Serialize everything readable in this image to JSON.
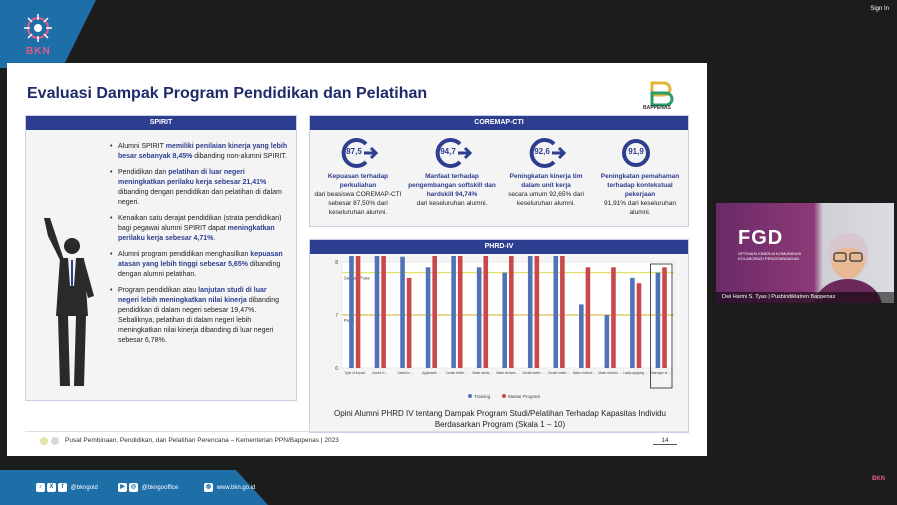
{
  "meeting": {
    "signin_label": "Sign In"
  },
  "brand": {
    "logo_text": "BKN",
    "accent": "#e35a8d",
    "band_color": "#1e6fa8"
  },
  "slide": {
    "title": "Evaluasi Dampak Program Pendidikan dan Pelatihan",
    "org_logo_text": "BAPPENAS",
    "spirit": {
      "header": "SPIRIT",
      "bullets": [
        {
          "pre": "Alumni SPIRIT ",
          "hl": "memiliki penilaian kinerja yang lebih besar sebanyak 8,45%",
          "post": " dibanding non-alumni SPIRIT."
        },
        {
          "pre": "Pendidikan dan ",
          "hl": "pelatihan di luar negeri meningkatkan perilaku kerja sebesar 21,41%",
          "post": " dibanding dengan pendidikan dan pelatihan di dalam negeri."
        },
        {
          "pre": "Kenaikan satu derajat pendidikan (strata pendidikan) bagi pegawai alumni SPIRIT dapat ",
          "hl": "meningkatkan perilaku kerja sebesar 4,71%",
          "post": "."
        },
        {
          "pre": "Alumni program pendidikan menghasilkan ",
          "hl": "kepuasan atasan yang lebih tinggi sebesar 5,65%",
          "post": " dibanding dengan alumni pelatihan."
        },
        {
          "pre": "Program pendidikan atau ",
          "hl": "lanjutan studi di luar negeri lebih meningkatkan nilai kinerja",
          "post": " dibanding pendidikan di dalam negeri sebesar 19,47%. Sebaliknya, pelatihan di dalam negeri lebih meningkatkan nilai kinerja dibanding di luar negeri sebesar 6,78%."
        }
      ]
    },
    "coremap": {
      "header": "COREMAP-CTI",
      "items": [
        {
          "value": "87,5",
          "title": "Kepuasan terhadap perkuliahan",
          "desc": "dari beasiswa COREMAP-CTI sebesar 87,50% dari keseluruhan alumni."
        },
        {
          "value": "94,7",
          "title": "Manfaat terhadap pengembangan softskill dan hardskill 94,74%",
          "desc": "dari keseluruhan alumni."
        },
        {
          "value": "92,6",
          "title": "Peningkatan kinerja tim dalam unit kerja",
          "desc": "secara umum 92,65% dari keseluruhan alumni."
        },
        {
          "value": "91,9",
          "title": "Peningkatan pemahaman terhadap kontekstual pekerjaan",
          "desc": "91,91% dari keseluruhan alumni."
        }
      ]
    },
    "phrd": {
      "header": "PHRD-IV",
      "caption_line1": "Opini Alumni PHRD IV tentang Dampak Program Studi/Pelatihan Terhadap Kapasitas Individu",
      "caption_line2": "Berdasarkan Program (Skala 1 – 10)"
    },
    "footer": {
      "text": "Pusat Pembinaan, Pendidikan, dan Pelatihan Perencana – Kementerian PPN/Bappenas   |   2023",
      "page": "14"
    }
  },
  "chart_data": {
    "type": "bar",
    "ylim": [
      6,
      8
    ],
    "y_ticks": [
      "8",
      "7",
      "6"
    ],
    "reference_lines": [
      {
        "label": "Sangat Puas",
        "value": 7.8,
        "color": "#e3e36a"
      },
      {
        "label": "Puas",
        "value": 7.0,
        "color": "#e3c86a"
      }
    ],
    "series": [
      {
        "name": "Training",
        "color": "#4f72b8",
        "values": [
          8.4,
          8.3,
          8.1,
          7.9,
          8.3,
          7.9,
          7.8,
          8.4,
          8.2,
          7.2,
          7.0,
          7.7,
          7.8
        ]
      },
      {
        "name": "Master Program",
        "color": "#c9484c",
        "values": [
          8.3,
          8.3,
          7.7,
          8.3,
          8.4,
          8.3,
          8.2,
          8.4,
          8.2,
          7.9,
          7.9,
          7.6,
          7.9
        ]
      }
    ],
    "categories": [
      "Type of impact",
      "Useful in …",
      "Useful in …",
      "Applicable …",
      "Create better …",
      "Make decisi…",
      "Make choices …",
      "Create better …",
      "Create better …",
      "Make choices …",
      "Make choices …",
      "Lastly applying …",
      "Manager of …"
    ],
    "legend": "bottom-center"
  },
  "video": {
    "fgd_title": "FGD",
    "fgd_sub": "OPTIMASI KINERJA KOMUNIKASI KOLABORASI PENGEMBANGAN",
    "participant_name": "Dwi Harini S. Tyas | Pusbindiklatren Bappenas"
  },
  "social": {
    "handle1": "@bkngoid",
    "handle2": "@bkngooffice",
    "site": "www.bkn.go.id",
    "corner_text": "BKN"
  }
}
